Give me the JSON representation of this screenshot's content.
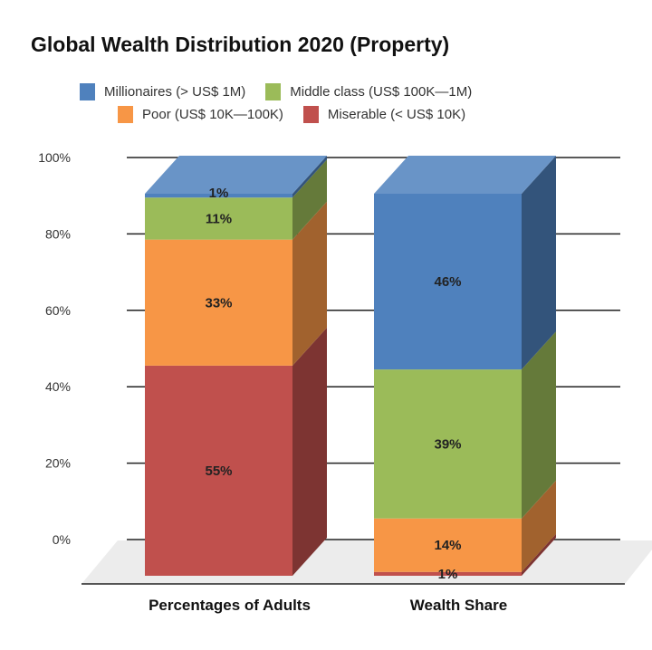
{
  "chart_data": {
    "type": "bar",
    "stacked": true,
    "style": "3d",
    "title": "Global Wealth Distribution 2020 (Property)",
    "categories": [
      "Percentages of Adults",
      "Wealth Share"
    ],
    "series": [
      {
        "name": "Miserable (< US$ 10K)",
        "color": "#c0504d",
        "values": [
          55,
          1
        ],
        "labels": [
          "55%",
          "1%"
        ]
      },
      {
        "name": "Poor (US$ 10K—100K)",
        "color": "#f79646",
        "values": [
          33,
          14
        ],
        "labels": [
          "33%",
          "14%"
        ]
      },
      {
        "name": "Middle class (US$ 100K—1M)",
        "color": "#9bbb59",
        "values": [
          11,
          39
        ],
        "labels": [
          "11%",
          "39%"
        ]
      },
      {
        "name": "Millionaires (> US$ 1M)",
        "color": "#4f81bd",
        "values": [
          1,
          46
        ],
        "labels": [
          "1%",
          "46%"
        ]
      }
    ],
    "yticks": [
      "0%",
      "20%",
      "40%",
      "60%",
      "80%",
      "100%"
    ],
    "ylim": [
      0,
      100
    ],
    "grid": true,
    "legend": "top"
  }
}
